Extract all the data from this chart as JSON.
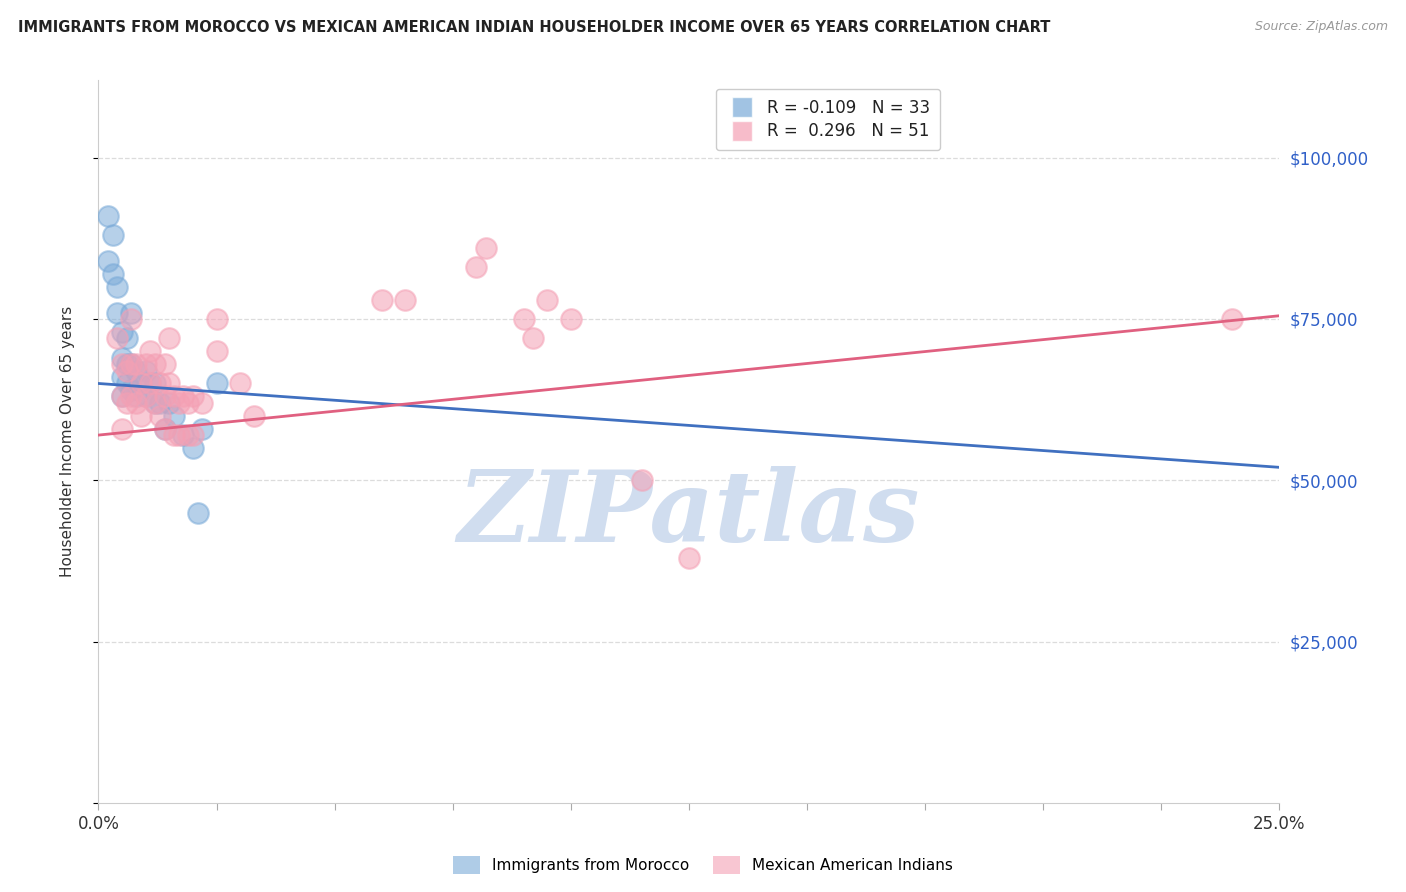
{
  "title": "IMMIGRANTS FROM MOROCCO VS MEXICAN AMERICAN INDIAN HOUSEHOLDER INCOME OVER 65 YEARS CORRELATION CHART",
  "source": "Source: ZipAtlas.com",
  "ylabel": "Householder Income Over 65 years",
  "blue_label": "Immigrants from Morocco",
  "pink_label": "Mexican American Indians",
  "legend_blue_R": "R = -0.109",
  "legend_blue_N": "N = 33",
  "legend_pink_R": "R =  0.296",
  "legend_pink_N": "N = 51",
  "blue_color": "#7AAAD8",
  "pink_color": "#F4A0B4",
  "blue_line_color": "#4070C0",
  "pink_line_color": "#E06080",
  "watermark_text": "ZIPatlas",
  "watermark_color": "#D0DDEF",
  "background_color": "#FFFFFF",
  "grid_color": "#DCDCDC",
  "right_axis_color": "#3060C8",
  "xmin": 0.0,
  "xmax": 0.25,
  "ymin": 0,
  "ymax": 112000,
  "blue_scatter_x": [
    0.002,
    0.002,
    0.003,
    0.003,
    0.004,
    0.004,
    0.005,
    0.005,
    0.005,
    0.005,
    0.006,
    0.006,
    0.006,
    0.007,
    0.007,
    0.007,
    0.008,
    0.008,
    0.009,
    0.01,
    0.01,
    0.011,
    0.012,
    0.012,
    0.013,
    0.014,
    0.015,
    0.016,
    0.018,
    0.02,
    0.021,
    0.022,
    0.025
  ],
  "blue_scatter_y": [
    91000,
    84000,
    88000,
    82000,
    80000,
    76000,
    73000,
    69000,
    66000,
    63000,
    72000,
    68000,
    65000,
    76000,
    68000,
    64000,
    67000,
    63000,
    65000,
    67000,
    63000,
    65000,
    65000,
    62000,
    62000,
    58000,
    62000,
    60000,
    57000,
    55000,
    45000,
    58000,
    65000
  ],
  "pink_scatter_x": [
    0.004,
    0.005,
    0.005,
    0.005,
    0.006,
    0.006,
    0.007,
    0.007,
    0.007,
    0.008,
    0.008,
    0.009,
    0.009,
    0.01,
    0.01,
    0.011,
    0.011,
    0.012,
    0.012,
    0.013,
    0.013,
    0.014,
    0.014,
    0.014,
    0.015,
    0.015,
    0.016,
    0.016,
    0.017,
    0.017,
    0.018,
    0.019,
    0.019,
    0.02,
    0.02,
    0.022,
    0.025,
    0.025,
    0.03,
    0.033,
    0.06,
    0.065,
    0.08,
    0.082,
    0.09,
    0.092,
    0.095,
    0.1,
    0.115,
    0.125,
    0.24
  ],
  "pink_scatter_y": [
    72000,
    68000,
    63000,
    58000,
    67000,
    62000,
    75000,
    68000,
    63000,
    68000,
    62000,
    65000,
    60000,
    68000,
    63000,
    70000,
    65000,
    68000,
    62000,
    65000,
    60000,
    68000,
    63000,
    58000,
    72000,
    65000,
    63000,
    57000,
    62000,
    57000,
    63000,
    62000,
    57000,
    63000,
    57000,
    62000,
    75000,
    70000,
    65000,
    60000,
    78000,
    78000,
    83000,
    86000,
    75000,
    72000,
    78000,
    75000,
    50000,
    38000,
    75000
  ]
}
